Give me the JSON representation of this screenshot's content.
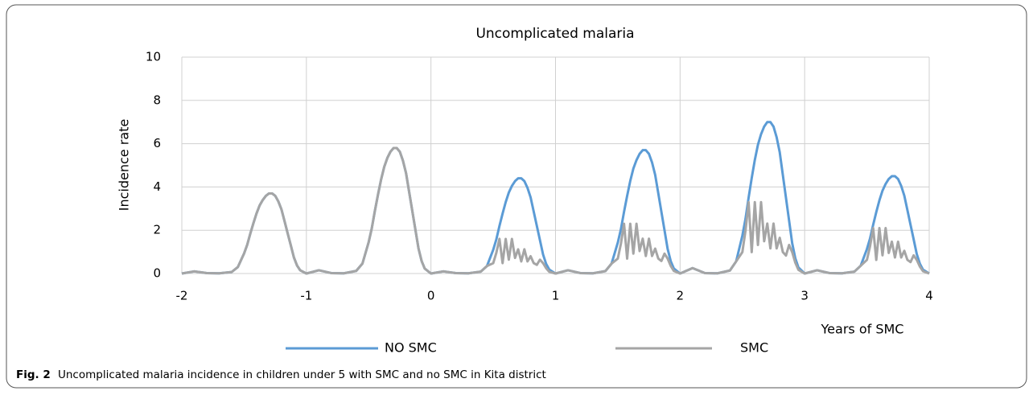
{
  "chart_data": {
    "type": "line",
    "title": "Uncomplicated malaria",
    "x_label": "Years of SMC",
    "y_label": "Incidence rate",
    "caption_label": "Fig. 2",
    "caption": "Uncomplicated malaria incidence in children under 5 with SMC and no SMC in Kita district",
    "xlim": [
      -2,
      4
    ],
    "xticks": [
      -2,
      -1,
      0,
      1,
      2,
      3,
      4
    ],
    "ylim": [
      0,
      10
    ],
    "yticks": [
      0,
      2,
      4,
      6,
      8,
      10
    ],
    "grid": true,
    "legend": "bottom",
    "x": [
      -2,
      -1.9,
      -1.8,
      -1.7,
      -1.6,
      -1.55,
      -1.5,
      -1.475,
      -1.45,
      -1.425,
      -1.4,
      -1.375,
      -1.35,
      -1.325,
      -1.3,
      -1.275,
      -1.25,
      -1.225,
      -1.2,
      -1.175,
      -1.15,
      -1.125,
      -1.1,
      -1.075,
      -1.05,
      -1,
      -0.9,
      -0.8,
      -0.7,
      -0.6,
      -0.55,
      -0.5,
      -0.475,
      -0.45,
      -0.425,
      -0.4,
      -0.375,
      -0.35,
      -0.325,
      -0.3,
      -0.275,
      -0.25,
      -0.225,
      -0.2,
      -0.175,
      -0.15,
      -0.125,
      -0.1,
      -0.075,
      -0.05,
      0,
      0.1,
      0.2,
      0.3,
      0.4,
      0.45,
      0.5,
      0.525,
      0.55,
      0.575,
      0.6,
      0.625,
      0.65,
      0.675,
      0.7,
      0.725,
      0.75,
      0.775,
      0.8,
      0.825,
      0.85,
      0.875,
      0.9,
      0.925,
      0.95,
      1,
      1.1,
      1.2,
      1.3,
      1.4,
      1.45,
      1.5,
      1.525,
      1.55,
      1.575,
      1.6,
      1.625,
      1.65,
      1.675,
      1.7,
      1.725,
      1.75,
      1.775,
      1.8,
      1.825,
      1.85,
      1.875,
      1.9,
      1.925,
      1.95,
      2,
      2.1,
      2.2,
      2.3,
      2.4,
      2.45,
      2.5,
      2.525,
      2.55,
      2.575,
      2.6,
      2.625,
      2.65,
      2.675,
      2.7,
      2.725,
      2.75,
      2.775,
      2.8,
      2.825,
      2.85,
      2.875,
      2.9,
      2.925,
      2.95,
      3,
      3.1,
      3.2,
      3.3,
      3.4,
      3.45,
      3.5,
      3.525,
      3.55,
      3.575,
      3.6,
      3.625,
      3.65,
      3.675,
      3.7,
      3.725,
      3.75,
      3.775,
      3.8,
      3.825,
      3.85,
      3.875,
      3.9,
      3.925,
      3.95,
      4
    ],
    "series": [
      {
        "name": "NO SMC",
        "color": "#5b9bd5",
        "values": [
          0,
          0.1,
          0.02,
          0.01,
          0.07,
          0.3,
          0.93,
          1.33,
          1.85,
          2.33,
          2.78,
          3.15,
          3.4,
          3.59,
          3.7,
          3.7,
          3.59,
          3.33,
          2.96,
          2.41,
          1.85,
          1.3,
          0.74,
          0.37,
          0.15,
          0,
          0.15,
          0.02,
          0.01,
          0.12,
          0.46,
          1.45,
          2.09,
          2.9,
          3.65,
          4.35,
          4.93,
          5.34,
          5.63,
          5.8,
          5.8,
          5.63,
          5.22,
          4.64,
          3.77,
          2.9,
          2.03,
          1.16,
          0.58,
          0.23,
          0,
          0.1,
          0.02,
          0.01,
          0.09,
          0.35,
          1.1,
          1.58,
          2.2,
          2.77,
          3.3,
          3.74,
          4.05,
          4.27,
          4.4,
          4.4,
          4.27,
          3.96,
          3.52,
          2.86,
          2.2,
          1.54,
          0.88,
          0.44,
          0.18,
          0,
          0.15,
          0.02,
          0.01,
          0.11,
          0.46,
          1.43,
          2.05,
          2.85,
          3.59,
          4.28,
          4.85,
          5.24,
          5.53,
          5.7,
          5.7,
          5.53,
          5.13,
          4.56,
          3.71,
          2.85,
          2,
          1.14,
          0.57,
          0.23,
          0,
          0.25,
          0.02,
          0.01,
          0.14,
          0.56,
          1.75,
          2.52,
          3.5,
          4.41,
          5.25,
          5.95,
          6.44,
          6.79,
          7,
          7,
          6.79,
          6.3,
          5.6,
          4.55,
          3.5,
          2.45,
          1.4,
          0.7,
          0.28,
          0,
          0.15,
          0.02,
          0.01,
          0.09,
          0.36,
          1.13,
          1.62,
          2.25,
          2.84,
          3.38,
          3.83,
          4.14,
          4.37,
          4.5,
          4.5,
          4.37,
          4.05,
          3.6,
          2.93,
          2.25,
          1.58,
          0.9,
          0.45,
          0.18,
          0
        ]
      },
      {
        "name": "SMC",
        "color": "#a5a5a5",
        "values": [
          0,
          0.1,
          0.02,
          0.01,
          0.07,
          0.3,
          0.93,
          1.33,
          1.85,
          2.33,
          2.78,
          3.15,
          3.4,
          3.59,
          3.7,
          3.7,
          3.59,
          3.33,
          2.96,
          2.41,
          1.85,
          1.3,
          0.74,
          0.37,
          0.15,
          0,
          0.15,
          0.02,
          0.01,
          0.12,
          0.46,
          1.45,
          2.09,
          2.9,
          3.65,
          4.35,
          4.93,
          5.34,
          5.63,
          5.8,
          5.8,
          5.63,
          5.22,
          4.64,
          3.77,
          2.9,
          2.03,
          1.16,
          0.58,
          0.23,
          0,
          0.1,
          0.02,
          0.01,
          0.09,
          0.35,
          0.48,
          0.96,
          1.6,
          0.48,
          1.6,
          0.64,
          1.6,
          0.72,
          1.12,
          0.56,
          1.12,
          0.56,
          0.8,
          0.48,
          0.4,
          0.64,
          0.48,
          0.24,
          0.08,
          0,
          0.15,
          0.02,
          0.01,
          0.11,
          0.46,
          0.69,
          1.38,
          2.3,
          0.69,
          2.3,
          0.92,
          2.3,
          1.04,
          1.61,
          0.81,
          1.61,
          0.81,
          1.15,
          0.69,
          0.58,
          0.92,
          0.69,
          0.35,
          0.12,
          0,
          0.25,
          0.02,
          0.01,
          0.14,
          0.56,
          0.99,
          1.98,
          3.3,
          0.99,
          3.3,
          1.32,
          3.3,
          1.49,
          2.31,
          1.16,
          2.31,
          1.16,
          1.65,
          0.99,
          0.83,
          1.32,
          0.99,
          0.5,
          0.17,
          0,
          0.15,
          0.02,
          0.01,
          0.09,
          0.36,
          0.63,
          1.26,
          2.1,
          0.63,
          2.1,
          0.84,
          2.1,
          0.95,
          1.47,
          0.74,
          1.47,
          0.74,
          1.05,
          0.63,
          0.53,
          0.84,
          0.63,
          0.32,
          0.11,
          0
        ]
      }
    ]
  }
}
